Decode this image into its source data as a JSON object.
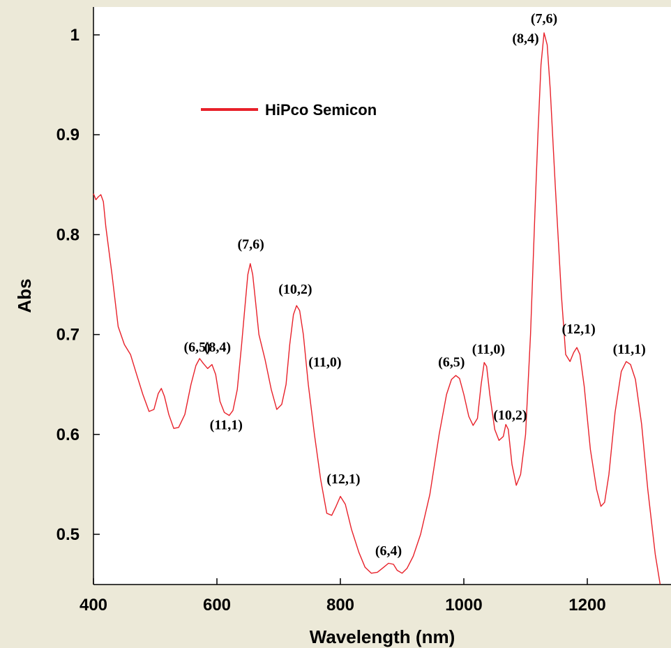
{
  "colors": {
    "background": "#ece9d8",
    "plot_area": "#ffffff",
    "series": "#e8212a"
  },
  "chart_data": {
    "type": "line",
    "title": "",
    "xlabel": "Wavelength (nm)",
    "ylabel": "Abs",
    "xlim": [
      400,
      1330
    ],
    "ylim": [
      0.45,
      1.03
    ],
    "x_ticks": [
      400,
      600,
      800,
      1000,
      1200
    ],
    "y_ticks": [
      0.5,
      0.6,
      0.7,
      0.8,
      0.9,
      1
    ],
    "x_tick_labels": [
      "400",
      "600",
      "800",
      "1000",
      "1200"
    ],
    "y_tick_labels": [
      "0.5",
      "0.6",
      "0.7",
      "0.8",
      "0.9",
      "1"
    ],
    "grid": false,
    "legend_position": "top-left",
    "series": [
      {
        "name": "HiPco Semicon",
        "color": "#e8212a",
        "points": [
          [
            400,
            0.841
          ],
          [
            404,
            0.835
          ],
          [
            408,
            0.838
          ],
          [
            412,
            0.84
          ],
          [
            416,
            0.833
          ],
          [
            420,
            0.808
          ],
          [
            430,
            0.76
          ],
          [
            440,
            0.708
          ],
          [
            450,
            0.69
          ],
          [
            460,
            0.68
          ],
          [
            470,
            0.66
          ],
          [
            480,
            0.64
          ],
          [
            490,
            0.623
          ],
          [
            498,
            0.625
          ],
          [
            505,
            0.641
          ],
          [
            510,
            0.646
          ],
          [
            515,
            0.638
          ],
          [
            522,
            0.62
          ],
          [
            530,
            0.606
          ],
          [
            538,
            0.607
          ],
          [
            548,
            0.62
          ],
          [
            558,
            0.65
          ],
          [
            566,
            0.669
          ],
          [
            572,
            0.676
          ],
          [
            578,
            0.671
          ],
          [
            585,
            0.666
          ],
          [
            592,
            0.67
          ],
          [
            598,
            0.66
          ],
          [
            605,
            0.633
          ],
          [
            612,
            0.622
          ],
          [
            620,
            0.619
          ],
          [
            626,
            0.624
          ],
          [
            633,
            0.645
          ],
          [
            640,
            0.69
          ],
          [
            645,
            0.725
          ],
          [
            650,
            0.76
          ],
          [
            654,
            0.771
          ],
          [
            658,
            0.76
          ],
          [
            663,
            0.73
          ],
          [
            668,
            0.7
          ],
          [
            678,
            0.675
          ],
          [
            688,
            0.645
          ],
          [
            697,
            0.625
          ],
          [
            705,
            0.63
          ],
          [
            712,
            0.65
          ],
          [
            718,
            0.69
          ],
          [
            724,
            0.72
          ],
          [
            729,
            0.729
          ],
          [
            734,
            0.724
          ],
          [
            740,
            0.7
          ],
          [
            748,
            0.65
          ],
          [
            758,
            0.6
          ],
          [
            768,
            0.555
          ],
          [
            778,
            0.521
          ],
          [
            786,
            0.519
          ],
          [
            793,
            0.528
          ],
          [
            800,
            0.538
          ],
          [
            808,
            0.53
          ],
          [
            818,
            0.505
          ],
          [
            830,
            0.482
          ],
          [
            840,
            0.467
          ],
          [
            850,
            0.461
          ],
          [
            860,
            0.462
          ],
          [
            870,
            0.467
          ],
          [
            878,
            0.471
          ],
          [
            886,
            0.47
          ],
          [
            892,
            0.464
          ],
          [
            900,
            0.461
          ],
          [
            908,
            0.466
          ],
          [
            918,
            0.478
          ],
          [
            930,
            0.5
          ],
          [
            945,
            0.54
          ],
          [
            960,
            0.6
          ],
          [
            972,
            0.64
          ],
          [
            980,
            0.655
          ],
          [
            987,
            0.659
          ],
          [
            993,
            0.656
          ],
          [
            1000,
            0.64
          ],
          [
            1008,
            0.618
          ],
          [
            1015,
            0.609
          ],
          [
            1022,
            0.616
          ],
          [
            1028,
            0.65
          ],
          [
            1033,
            0.672
          ],
          [
            1037,
            0.668
          ],
          [
            1042,
            0.64
          ],
          [
            1050,
            0.605
          ],
          [
            1057,
            0.594
          ],
          [
            1064,
            0.598
          ],
          [
            1068,
            0.61
          ],
          [
            1072,
            0.605
          ],
          [
            1078,
            0.57
          ],
          [
            1085,
            0.549
          ],
          [
            1092,
            0.56
          ],
          [
            1100,
            0.6
          ],
          [
            1108,
            0.7
          ],
          [
            1115,
            0.82
          ],
          [
            1120,
            0.9
          ],
          [
            1125,
            0.97
          ],
          [
            1130,
            1.002
          ],
          [
            1135,
            0.99
          ],
          [
            1140,
            0.945
          ],
          [
            1148,
            0.85
          ],
          [
            1158,
            0.74
          ],
          [
            1165,
            0.68
          ],
          [
            1172,
            0.673
          ],
          [
            1178,
            0.682
          ],
          [
            1183,
            0.687
          ],
          [
            1188,
            0.68
          ],
          [
            1195,
            0.648
          ],
          [
            1205,
            0.585
          ],
          [
            1215,
            0.545
          ],
          [
            1222,
            0.528
          ],
          [
            1228,
            0.532
          ],
          [
            1235,
            0.56
          ],
          [
            1245,
            0.622
          ],
          [
            1255,
            0.663
          ],
          [
            1263,
            0.673
          ],
          [
            1270,
            0.67
          ],
          [
            1278,
            0.655
          ],
          [
            1288,
            0.61
          ],
          [
            1298,
            0.545
          ],
          [
            1310,
            0.48
          ],
          [
            1318,
            0.45
          ]
        ]
      }
    ],
    "annotations": [
      {
        "text": "(7,6)",
        "x": 1130,
        "y": 1.012
      },
      {
        "text": "(8,4)",
        "x": 1100,
        "y": 0.992
      },
      {
        "text": "(6,5)",
        "x": 568,
        "y": 0.683
      },
      {
        "text": "(8,4)",
        "x": 601,
        "y": 0.683
      },
      {
        "text": "(11,1)",
        "x": 615,
        "y": 0.605
      },
      {
        "text": "(7,6)",
        "x": 655,
        "y": 0.786
      },
      {
        "text": "(10,2)",
        "x": 727,
        "y": 0.741
      },
      {
        "text": "(11,0)",
        "x": 775,
        "y": 0.668
      },
      {
        "text": "(12,1)",
        "x": 805,
        "y": 0.551
      },
      {
        "text": "(6,4)",
        "x": 878,
        "y": 0.479
      },
      {
        "text": "(6,5)",
        "x": 980,
        "y": 0.668
      },
      {
        "text": "(11,0)",
        "x": 1040,
        "y": 0.681
      },
      {
        "text": "(10,2)",
        "x": 1075,
        "y": 0.615
      },
      {
        "text": "(12,1)",
        "x": 1186,
        "y": 0.701
      },
      {
        "text": "(11,1)",
        "x": 1268,
        "y": 0.681
      }
    ]
  }
}
